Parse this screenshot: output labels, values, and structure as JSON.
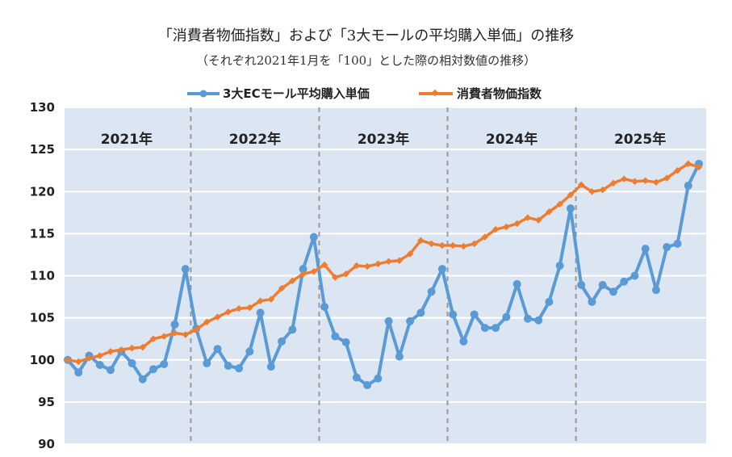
{
  "colors": {
    "plot_background": "#dce6f2",
    "grid": "#ffffff",
    "divider": "#999999",
    "ec_series": "#5b9bd5",
    "cpi_series": "#ed7d31"
  },
  "chart_data": {
    "type": "line",
    "title": "「消費者物価指数」および「3大モールの平均購入単価」の推移",
    "subtitle": "（それぞれ2021年1月を「100」とした際の相対数値の推移）",
    "xlabel": "",
    "ylabel": "",
    "ylim": [
      90,
      130
    ],
    "yticks": [
      "130",
      "125",
      "120",
      "115",
      "110",
      "105",
      "100",
      "95",
      "90"
    ],
    "grid": true,
    "legend_position": "top",
    "year_labels": [
      "2021年",
      "2022年",
      "2023年",
      "2024年",
      "2025年"
    ],
    "x": [
      "2021-01",
      "2021-02",
      "2021-03",
      "2021-04",
      "2021-05",
      "2021-06",
      "2021-07",
      "2021-08",
      "2021-09",
      "2021-10",
      "2021-11",
      "2021-12",
      "2022-01",
      "2022-02",
      "2022-03",
      "2022-04",
      "2022-05",
      "2022-06",
      "2022-07",
      "2022-08",
      "2022-09",
      "2022-10",
      "2022-11",
      "2022-12",
      "2023-01",
      "2023-02",
      "2023-03",
      "2023-04",
      "2023-05",
      "2023-06",
      "2023-07",
      "2023-08",
      "2023-09",
      "2023-10",
      "2023-11",
      "2023-12",
      "2024-01",
      "2024-02",
      "2024-03",
      "2024-04",
      "2024-05",
      "2024-06",
      "2024-07",
      "2024-08",
      "2024-09",
      "2024-10",
      "2024-11",
      "2024-12",
      "2025-01",
      "2025-02",
      "2025-03",
      "2025-04",
      "2025-05",
      "2025-06",
      "2025-07",
      "2025-08",
      "2025-09",
      "2025-10",
      "2025-11",
      "2025-12"
    ],
    "series": [
      {
        "name": "3大ECモール平均購入単価",
        "color": "#5b9bd5",
        "values": [
          100.0,
          98.5,
          100.5,
          99.4,
          98.8,
          101.0,
          99.6,
          97.7,
          98.9,
          99.5,
          104.2,
          110.8,
          103.7,
          99.6,
          101.3,
          99.3,
          99.0,
          101.0,
          105.6,
          99.2,
          102.2,
          103.6,
          110.8,
          114.6,
          106.3,
          102.8,
          102.1,
          97.9,
          97.0,
          97.8,
          104.6,
          100.4,
          104.6,
          105.6,
          108.1,
          110.8,
          105.4,
          102.2,
          105.4,
          103.8,
          103.8,
          105.1,
          109.0,
          104.9,
          104.7,
          106.9,
          111.2,
          118.0,
          108.9,
          106.9,
          108.9,
          108.1,
          109.3,
          110.0,
          113.2,
          108.3,
          113.4,
          113.8,
          120.7,
          123.3
        ]
      },
      {
        "name": "消費者物価指数",
        "color": "#ed7d31",
        "values": [
          100.0,
          99.8,
          100.2,
          100.5,
          101.0,
          101.2,
          101.4,
          101.5,
          102.5,
          102.8,
          103.2,
          103.0,
          103.6,
          104.5,
          105.1,
          105.7,
          106.1,
          106.2,
          107.0,
          107.2,
          108.5,
          109.4,
          110.2,
          110.5,
          111.3,
          109.8,
          110.2,
          111.2,
          111.1,
          111.4,
          111.7,
          111.8,
          112.6,
          114.2,
          113.8,
          113.6,
          113.6,
          113.5,
          113.8,
          114.6,
          115.5,
          115.8,
          116.2,
          116.9,
          116.6,
          117.6,
          118.5,
          119.6,
          120.8,
          120.0,
          120.2,
          121.0,
          121.5,
          121.2,
          121.3,
          121.1,
          121.6,
          122.5,
          123.3,
          122.9
        ]
      }
    ]
  }
}
